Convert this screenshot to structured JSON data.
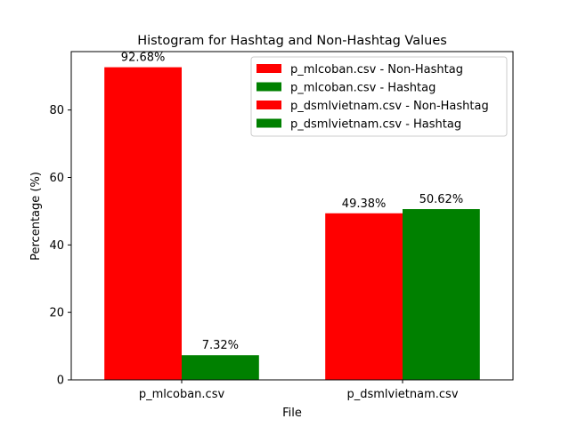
{
  "chart_data": {
    "type": "bar",
    "title": "Histogram for Hashtag and Non-Hashtag Values",
    "xlabel": "File",
    "ylabel": "Percentage (%)",
    "categories": [
      "p_mlcoban.csv",
      "p_dsmlvietnam.csv"
    ],
    "series": [
      {
        "name": "Non-Hashtag",
        "color": "#ff0000",
        "values": [
          92.68,
          49.38
        ]
      },
      {
        "name": "Hashtag",
        "color": "#008000",
        "values": [
          7.32,
          50.62
        ]
      }
    ],
    "data_labels": [
      [
        "92.68%",
        "7.32%"
      ],
      [
        "49.38%",
        "50.62%"
      ]
    ],
    "legend": {
      "placement": "top-right",
      "entries": [
        {
          "label": "p_mlcoban.csv - Non-Hashtag",
          "color": "#ff0000"
        },
        {
          "label": "p_mlcoban.csv - Hashtag",
          "color": "#008000"
        },
        {
          "label": "p_dsmlvietnam.csv - Non-Hashtag",
          "color": "#ff0000"
        },
        {
          "label": "p_dsmlvietnam.csv - Hashtag",
          "color": "#008000"
        }
      ]
    },
    "ylim": [
      0,
      97.314
    ],
    "yticks": [
      0,
      20,
      40,
      60,
      80
    ],
    "grid": false
  }
}
